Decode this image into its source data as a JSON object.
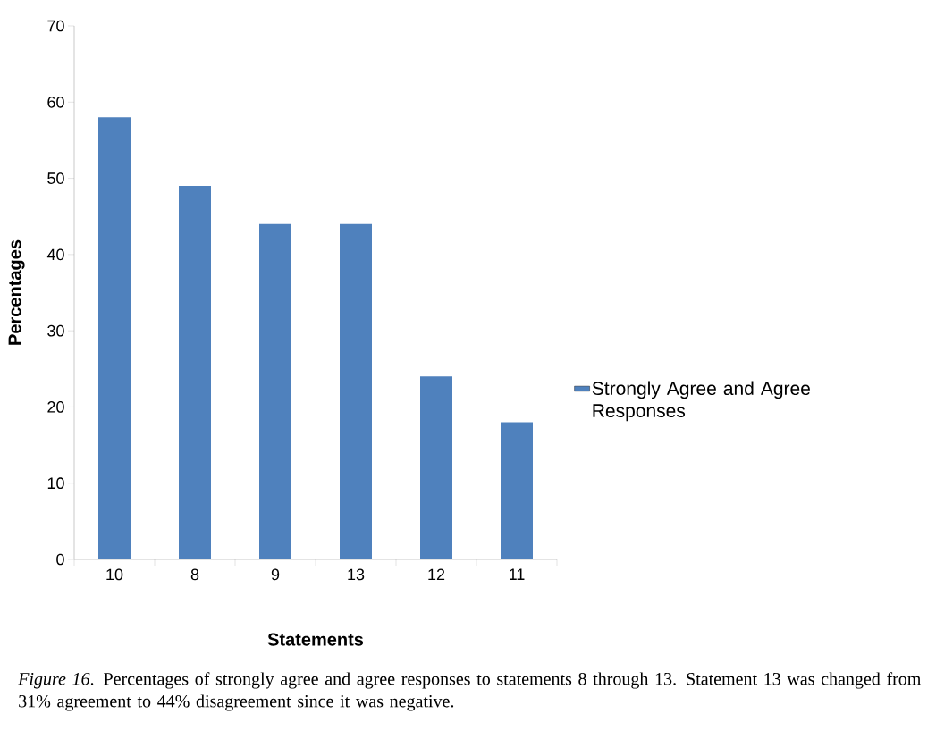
{
  "chart_data": {
    "type": "bar",
    "xlabel": "Statements",
    "ylabel": "Percentages",
    "categories": [
      "10",
      "8",
      "9",
      "13",
      "12",
      "11"
    ],
    "series": [
      {
        "name": "Strongly Agree and Agree Responses",
        "color": "#4f81bd",
        "values": [
          58,
          49,
          44,
          44,
          24,
          18
        ]
      }
    ],
    "ylim": [
      0,
      70
    ],
    "yticks": [
      0,
      10,
      20,
      30,
      40,
      50,
      60,
      70
    ],
    "grid": false,
    "legend": "right",
    "annotations": [
      "*Figure 16*. Percentages of strongly agree and agree responses to statements 8 through 13. Statement 13 was changed from 31% agreement to 44% disagreement since it was negative."
    ]
  }
}
